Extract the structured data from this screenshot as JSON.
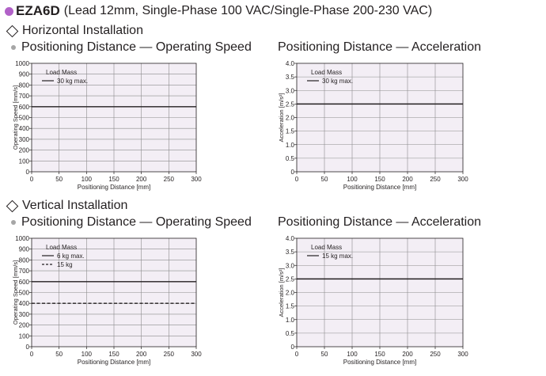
{
  "header": {
    "model": "EZA6D",
    "subtitle": "(Lead 12mm, Single-Phase 100 VAC/Single-Phase 200-230 VAC)",
    "accent_color": "#b161c8",
    "marker_icon": "circle-bullet-icon"
  },
  "sections": [
    {
      "title": "Horizontal Installation",
      "icon": "diamond-icon"
    },
    {
      "title": "Vertical Installation",
      "icon": "diamond-icon"
    }
  ],
  "chart_data": [
    {
      "type": "line",
      "title": "Positioning Distance — Operating Speed",
      "xlabel": "Positioning Distance [mm]",
      "ylabel": "Operating Speed [mm/s]",
      "xlim": [
        0,
        300
      ],
      "ylim": [
        0,
        1000
      ],
      "xticks": [
        "0",
        "50",
        "100",
        "150",
        "200",
        "250",
        "300"
      ],
      "yticks": [
        "0",
        "100",
        "200",
        "300",
        "400",
        "500",
        "600",
        "700",
        "800",
        "900",
        "1000"
      ],
      "grid": true,
      "plot_background": "#f3eef5",
      "legend_title": "Load Mass",
      "legend_position": "top-left",
      "series": [
        {
          "name": "30 kg max.",
          "style": "solid",
          "x": [
            0,
            300
          ],
          "y": [
            600,
            600
          ]
        }
      ]
    },
    {
      "type": "line",
      "title": "Positioning Distance — Acceleration",
      "xlabel": "Positioning Distance [mm]",
      "ylabel": "Acceleration [m/s²]",
      "xlim": [
        0,
        300
      ],
      "ylim": [
        0,
        4.0
      ],
      "xticks": [
        "0",
        "50",
        "100",
        "150",
        "200",
        "250",
        "300"
      ],
      "yticks": [
        "0",
        "0.5",
        "1.0",
        "1.5",
        "2.0",
        "2.5",
        "3.0",
        "3.5",
        "4.0"
      ],
      "grid": true,
      "plot_background": "#f3eef5",
      "legend_title": "Load Mass",
      "legend_position": "top-left",
      "series": [
        {
          "name": "30 kg max.",
          "style": "solid",
          "x": [
            0,
            300
          ],
          "y": [
            2.5,
            2.5
          ]
        }
      ]
    },
    {
      "type": "line",
      "title": "Positioning Distance — Operating Speed",
      "xlabel": "Positioning Distance [mm]",
      "ylabel": "Operating Speed [mm/s]",
      "xlim": [
        0,
        300
      ],
      "ylim": [
        0,
        1000
      ],
      "xticks": [
        "0",
        "50",
        "100",
        "150",
        "200",
        "250",
        "300"
      ],
      "yticks": [
        "0",
        "100",
        "200",
        "300",
        "400",
        "500",
        "600",
        "700",
        "800",
        "900",
        "1000"
      ],
      "grid": true,
      "plot_background": "#f3eef5",
      "legend_title": "Load Mass",
      "legend_position": "top-left",
      "series": [
        {
          "name": "6 kg max.",
          "style": "solid",
          "x": [
            0,
            300
          ],
          "y": [
            600,
            600
          ]
        },
        {
          "name": "15 kg",
          "style": "dashed",
          "x": [
            0,
            300
          ],
          "y": [
            400,
            400
          ]
        }
      ]
    },
    {
      "type": "line",
      "title": "Positioning Distance — Acceleration",
      "xlabel": "Positioning Distance [mm]",
      "ylabel": "Acceleration [m/s²]",
      "xlim": [
        0,
        300
      ],
      "ylim": [
        0,
        4.0
      ],
      "xticks": [
        "0",
        "50",
        "100",
        "150",
        "200",
        "250",
        "300"
      ],
      "yticks": [
        "0",
        "0.5",
        "1.0",
        "1.5",
        "2.0",
        "2.5",
        "3.0",
        "3.5",
        "4.0"
      ],
      "grid": true,
      "plot_background": "#f3eef5",
      "legend_title": "Load Mass",
      "legend_position": "top-left",
      "series": [
        {
          "name": "15 kg max.",
          "style": "solid",
          "x": [
            0,
            300
          ],
          "y": [
            2.5,
            2.5
          ]
        }
      ]
    }
  ]
}
